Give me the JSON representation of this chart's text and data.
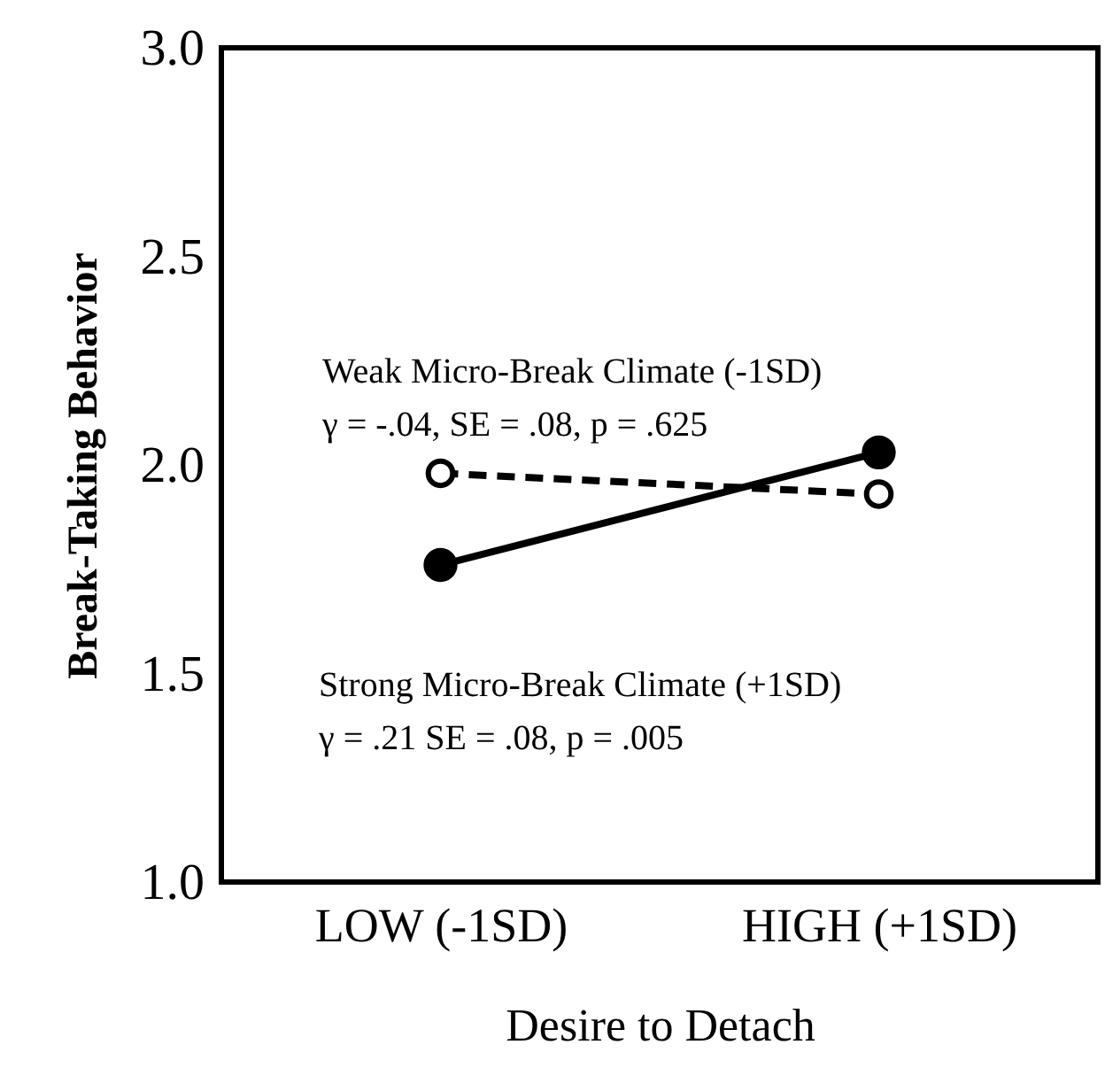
{
  "chart_data": {
    "type": "line",
    "xlabel": "Desire to Detach",
    "ylabel": "Break-Taking Behavior",
    "categories": [
      "LOW (-1SD)",
      "HIGH (+1SD)"
    ],
    "ylim": [
      1.0,
      3.0
    ],
    "yticks": [
      {
        "value": 1,
        "label": "1.0"
      },
      {
        "value": 1.5,
        "label": "1.5"
      },
      {
        "value": 2,
        "label": "2.0"
      },
      {
        "value": 2.5,
        "label": "2.5"
      },
      {
        "value": 3,
        "label": "3.0"
      }
    ],
    "series": [
      {
        "color": "#000000",
        "line_style": "dashed",
        "values": [
          1.98,
          1.93
        ]
      },
      {
        "color": "#000000",
        "line_style": "solid",
        "values": [
          1.76,
          2.03
        ]
      }
    ],
    "marker": "circle",
    "grid": false,
    "annotations": [
      "Weak Micro-Break Climate (-1SD)",
      "γ = -.04, SE = .08, p = .625",
      "Strong Micro-Break Climate (+1SD)",
      "γ = .21 SE = .08, p = .005"
    ]
  }
}
